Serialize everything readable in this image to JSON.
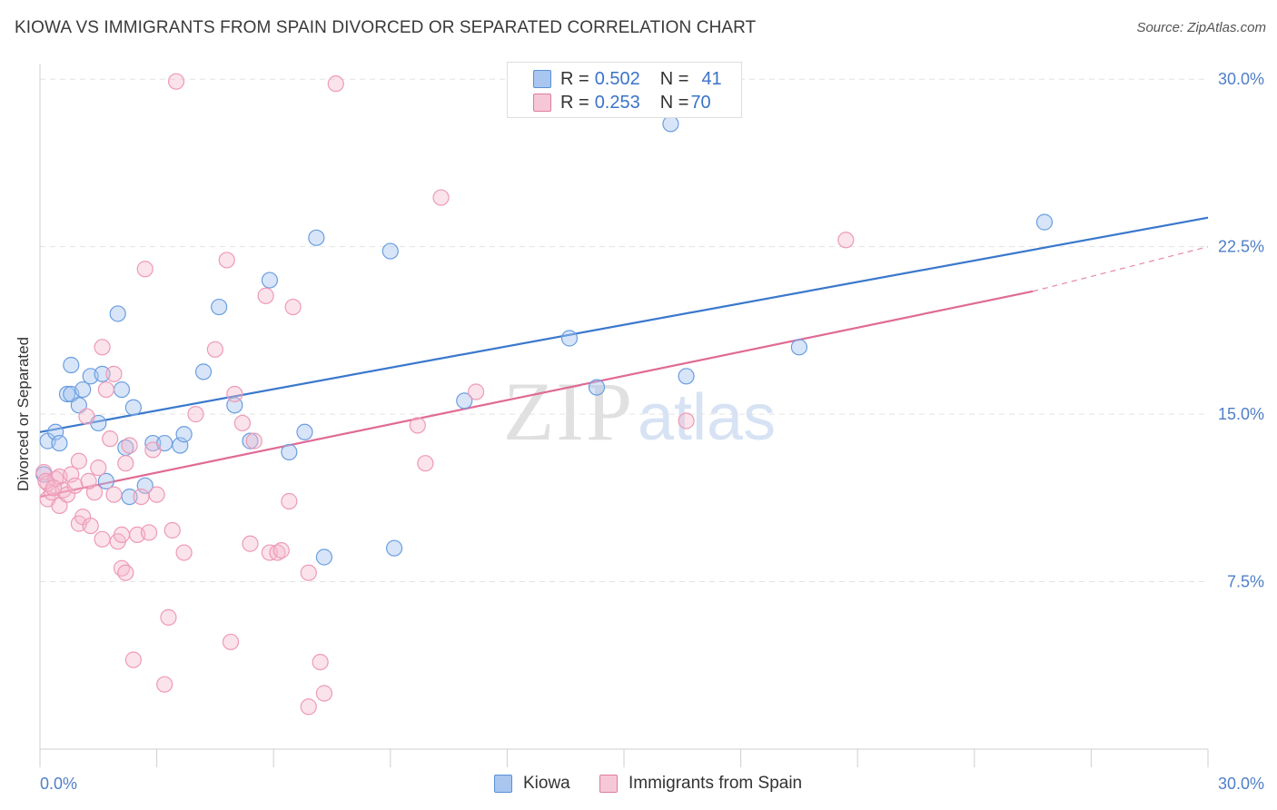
{
  "header": {
    "title": "KIOWA VS IMMIGRANTS FROM SPAIN DIVORCED OR SEPARATED CORRELATION CHART",
    "source": "Source: ZipAtlas.com"
  },
  "watermark": {
    "zip": "ZIP",
    "atlas": "atlas"
  },
  "legend": {
    "rows": [
      {
        "r_label": "R = ",
        "r_value": "0.502",
        "n_label": "N = ",
        "n_value": "41",
        "color": "#a8c6ef",
        "stroke": "#5b8fd6"
      },
      {
        "r_label": "R = ",
        "r_value": "0.253",
        "n_label": "N = ",
        "n_value": "70",
        "color": "#f6b9cc",
        "stroke": "#e07a9c"
      }
    ]
  },
  "bottom_legend": [
    {
      "label": "Kiowa",
      "color": "#a8c6ef",
      "stroke": "#5b8fd6"
    },
    {
      "label": "Immigrants from Spain",
      "color": "#f6b9cc",
      "stroke": "#e07a9c"
    }
  ],
  "chart_data": {
    "type": "scatter",
    "title": "KIOWA VS IMMIGRANTS FROM SPAIN DIVORCED OR SEPARATED CORRELATION CHART",
    "xlabel": "",
    "ylabel": "Divorced or Separated",
    "xlim": [
      0,
      30
    ],
    "ylim": [
      0,
      30.7
    ],
    "x_tick_labels": [
      "0.0%",
      "30.0%"
    ],
    "y_ticks": [
      7.5,
      15.0,
      22.5,
      30.0
    ],
    "y_tick_labels": [
      "7.5%",
      "15.0%",
      "22.5%",
      "30.0%"
    ],
    "grid": true,
    "legend_position": "top-center",
    "series": [
      {
        "name": "Kiowa",
        "color": "#6a9ee0",
        "line_color": "#3a78cc",
        "trend": {
          "x": [
            0,
            30
          ],
          "y": [
            14.2,
            23.8
          ]
        },
        "points": [
          [
            0.2,
            13.8
          ],
          [
            0.4,
            14.2
          ],
          [
            0.5,
            13.7
          ],
          [
            0.7,
            15.9
          ],
          [
            0.8,
            15.9
          ],
          [
            0.8,
            17.2
          ],
          [
            1.0,
            15.4
          ],
          [
            1.1,
            16.1
          ],
          [
            1.3,
            16.7
          ],
          [
            1.5,
            14.6
          ],
          [
            1.6,
            16.8
          ],
          [
            1.7,
            12.0
          ],
          [
            2.0,
            19.5
          ],
          [
            2.1,
            16.1
          ],
          [
            2.2,
            13.5
          ],
          [
            2.3,
            11.3
          ],
          [
            2.4,
            15.3
          ],
          [
            2.7,
            11.8
          ],
          [
            2.9,
            13.7
          ],
          [
            3.2,
            13.7
          ],
          [
            3.6,
            13.6
          ],
          [
            3.7,
            14.1
          ],
          [
            4.2,
            16.9
          ],
          [
            4.6,
            19.8
          ],
          [
            5.0,
            15.4
          ],
          [
            5.4,
            13.8
          ],
          [
            5.9,
            21.0
          ],
          [
            6.4,
            13.3
          ],
          [
            6.8,
            14.2
          ],
          [
            7.1,
            22.9
          ],
          [
            7.3,
            8.6
          ],
          [
            9.0,
            22.3
          ],
          [
            9.1,
            9.0
          ],
          [
            10.9,
            15.6
          ],
          [
            13.6,
            18.4
          ],
          [
            14.3,
            16.2
          ],
          [
            16.2,
            28.0
          ],
          [
            16.6,
            16.7
          ],
          [
            19.5,
            18.0
          ],
          [
            25.8,
            23.6
          ],
          [
            0.1,
            12.3
          ]
        ]
      },
      {
        "name": "Immigrants from Spain",
        "color": "#f0a0ba",
        "line_color": "#e06a94",
        "trend": {
          "x": [
            0,
            25.5
          ],
          "y": [
            11.3,
            20.5
          ]
        },
        "trend_dashed": {
          "x": [
            25.5,
            30
          ],
          "y": [
            20.5,
            22.5
          ]
        },
        "points": [
          [
            0.1,
            12.4
          ],
          [
            0.2,
            11.9
          ],
          [
            0.2,
            11.2
          ],
          [
            0.3,
            11.5
          ],
          [
            0.4,
            12.1
          ],
          [
            0.5,
            10.9
          ],
          [
            0.5,
            12.2
          ],
          [
            0.6,
            11.6
          ],
          [
            0.7,
            11.4
          ],
          [
            0.8,
            12.3
          ],
          [
            0.9,
            11.8
          ],
          [
            1.0,
            10.1
          ],
          [
            1.0,
            12.9
          ],
          [
            1.1,
            10.4
          ],
          [
            1.2,
            14.9
          ],
          [
            1.3,
            10.0
          ],
          [
            1.4,
            11.5
          ],
          [
            1.5,
            12.6
          ],
          [
            1.6,
            9.4
          ],
          [
            1.6,
            18.0
          ],
          [
            1.7,
            16.1
          ],
          [
            1.8,
            13.9
          ],
          [
            1.9,
            16.8
          ],
          [
            1.9,
            11.4
          ],
          [
            2.0,
            9.3
          ],
          [
            2.1,
            8.1
          ],
          [
            2.1,
            9.6
          ],
          [
            2.2,
            7.9
          ],
          [
            2.2,
            12.8
          ],
          [
            2.3,
            13.6
          ],
          [
            2.4,
            4.0
          ],
          [
            2.5,
            9.6
          ],
          [
            2.6,
            11.3
          ],
          [
            2.7,
            21.5
          ],
          [
            2.8,
            9.7
          ],
          [
            2.9,
            13.4
          ],
          [
            3.0,
            11.4
          ],
          [
            3.2,
            2.9
          ],
          [
            3.3,
            5.9
          ],
          [
            3.4,
            9.8
          ],
          [
            3.5,
            29.9
          ],
          [
            3.7,
            8.8
          ],
          [
            4.0,
            15.0
          ],
          [
            4.5,
            17.9
          ],
          [
            4.8,
            21.9
          ],
          [
            4.9,
            4.8
          ],
          [
            5.0,
            15.9
          ],
          [
            5.2,
            14.6
          ],
          [
            5.4,
            9.2
          ],
          [
            5.5,
            13.8
          ],
          [
            5.8,
            20.3
          ],
          [
            5.9,
            8.8
          ],
          [
            6.1,
            8.8
          ],
          [
            6.2,
            8.9
          ],
          [
            6.4,
            11.1
          ],
          [
            6.5,
            19.8
          ],
          [
            6.9,
            1.9
          ],
          [
            6.9,
            7.9
          ],
          [
            7.2,
            3.9
          ],
          [
            7.3,
            2.5
          ],
          [
            7.6,
            29.8
          ],
          [
            9.7,
            14.5
          ],
          [
            9.9,
            12.8
          ],
          [
            10.3,
            24.7
          ],
          [
            11.2,
            16.0
          ],
          [
            16.6,
            14.7
          ],
          [
            20.7,
            22.8
          ],
          [
            0.15,
            12.0
          ],
          [
            0.35,
            11.7
          ],
          [
            1.25,
            12.0
          ]
        ]
      }
    ]
  }
}
